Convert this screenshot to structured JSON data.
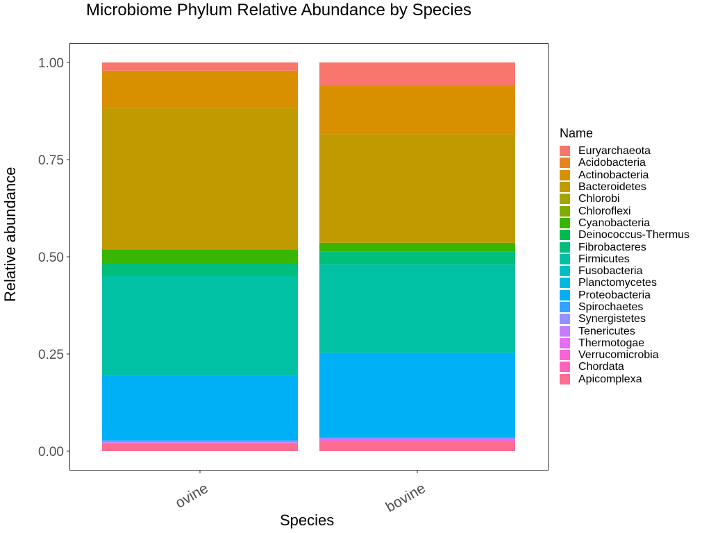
{
  "chart_data": {
    "type": "bar",
    "stacked": true,
    "title": "Microbiome Phylum Relative Abundance by Species",
    "xlabel": "Species",
    "ylabel": "Relative abundance",
    "ylim": [
      0,
      1
    ],
    "yticks": [
      "0.00",
      "0.25",
      "0.50",
      "0.75",
      "1.00"
    ],
    "categories": [
      "ovine",
      "bovine"
    ],
    "legend_title": "Name",
    "legend_position": "right",
    "grid": false,
    "series": [
      {
        "name": "Euryarchaeota",
        "color": "#F8766D",
        "values": [
          0.021,
          0.059
        ]
      },
      {
        "name": "Acidobacteria",
        "color": "#E7851E",
        "values": [
          0.0,
          0.0
        ]
      },
      {
        "name": "Actinobacteria",
        "color": "#D89000",
        "values": [
          0.097,
          0.126
        ]
      },
      {
        "name": "Bacteroidetes",
        "color": "#C09B00",
        "values": [
          0.363,
          0.279
        ]
      },
      {
        "name": "Chlorobi",
        "color": "#A3A500",
        "values": [
          0.0,
          0.0
        ]
      },
      {
        "name": "Chloroflexi",
        "color": "#7CAE00",
        "values": [
          0.0,
          0.0
        ]
      },
      {
        "name": "Cyanobacteria",
        "color": "#39B600",
        "values": [
          0.036,
          0.022
        ]
      },
      {
        "name": "Deinococcus-Thermus",
        "color": "#00BB4E",
        "values": [
          0.0,
          0.0
        ]
      },
      {
        "name": "Fibrobacteres",
        "color": "#00BF7D",
        "values": [
          0.033,
          0.034
        ]
      },
      {
        "name": "Firmicutes",
        "color": "#00C1A3",
        "values": [
          0.255,
          0.227
        ]
      },
      {
        "name": "Fusobacteria",
        "color": "#00BFC4",
        "values": [
          0.0,
          0.0
        ]
      },
      {
        "name": "Planctomycetes",
        "color": "#00BAE0",
        "values": [
          0.0,
          0.0
        ]
      },
      {
        "name": "Proteobacteria",
        "color": "#00B0F6",
        "values": [
          0.167,
          0.218
        ]
      },
      {
        "name": "Spirochaetes",
        "color": "#35A2FF",
        "values": [
          0.003,
          0.002
        ]
      },
      {
        "name": "Synergistetes",
        "color": "#9590FF",
        "values": [
          0.0,
          0.0
        ]
      },
      {
        "name": "Tenericutes",
        "color": "#C77CFF",
        "values": [
          0.003,
          0.002
        ]
      },
      {
        "name": "Thermotogae",
        "color": "#E76BF3",
        "values": [
          0.0,
          0.0
        ]
      },
      {
        "name": "Verrucomicrobia",
        "color": "#FA62DB",
        "values": [
          0.004,
          0.005
        ]
      },
      {
        "name": "Chordata",
        "color": "#FF62BC",
        "values": [
          0.0,
          0.0
        ]
      },
      {
        "name": "Apicomplexa",
        "color": "#FF6C91",
        "values": [
          0.018,
          0.026
        ]
      }
    ]
  }
}
